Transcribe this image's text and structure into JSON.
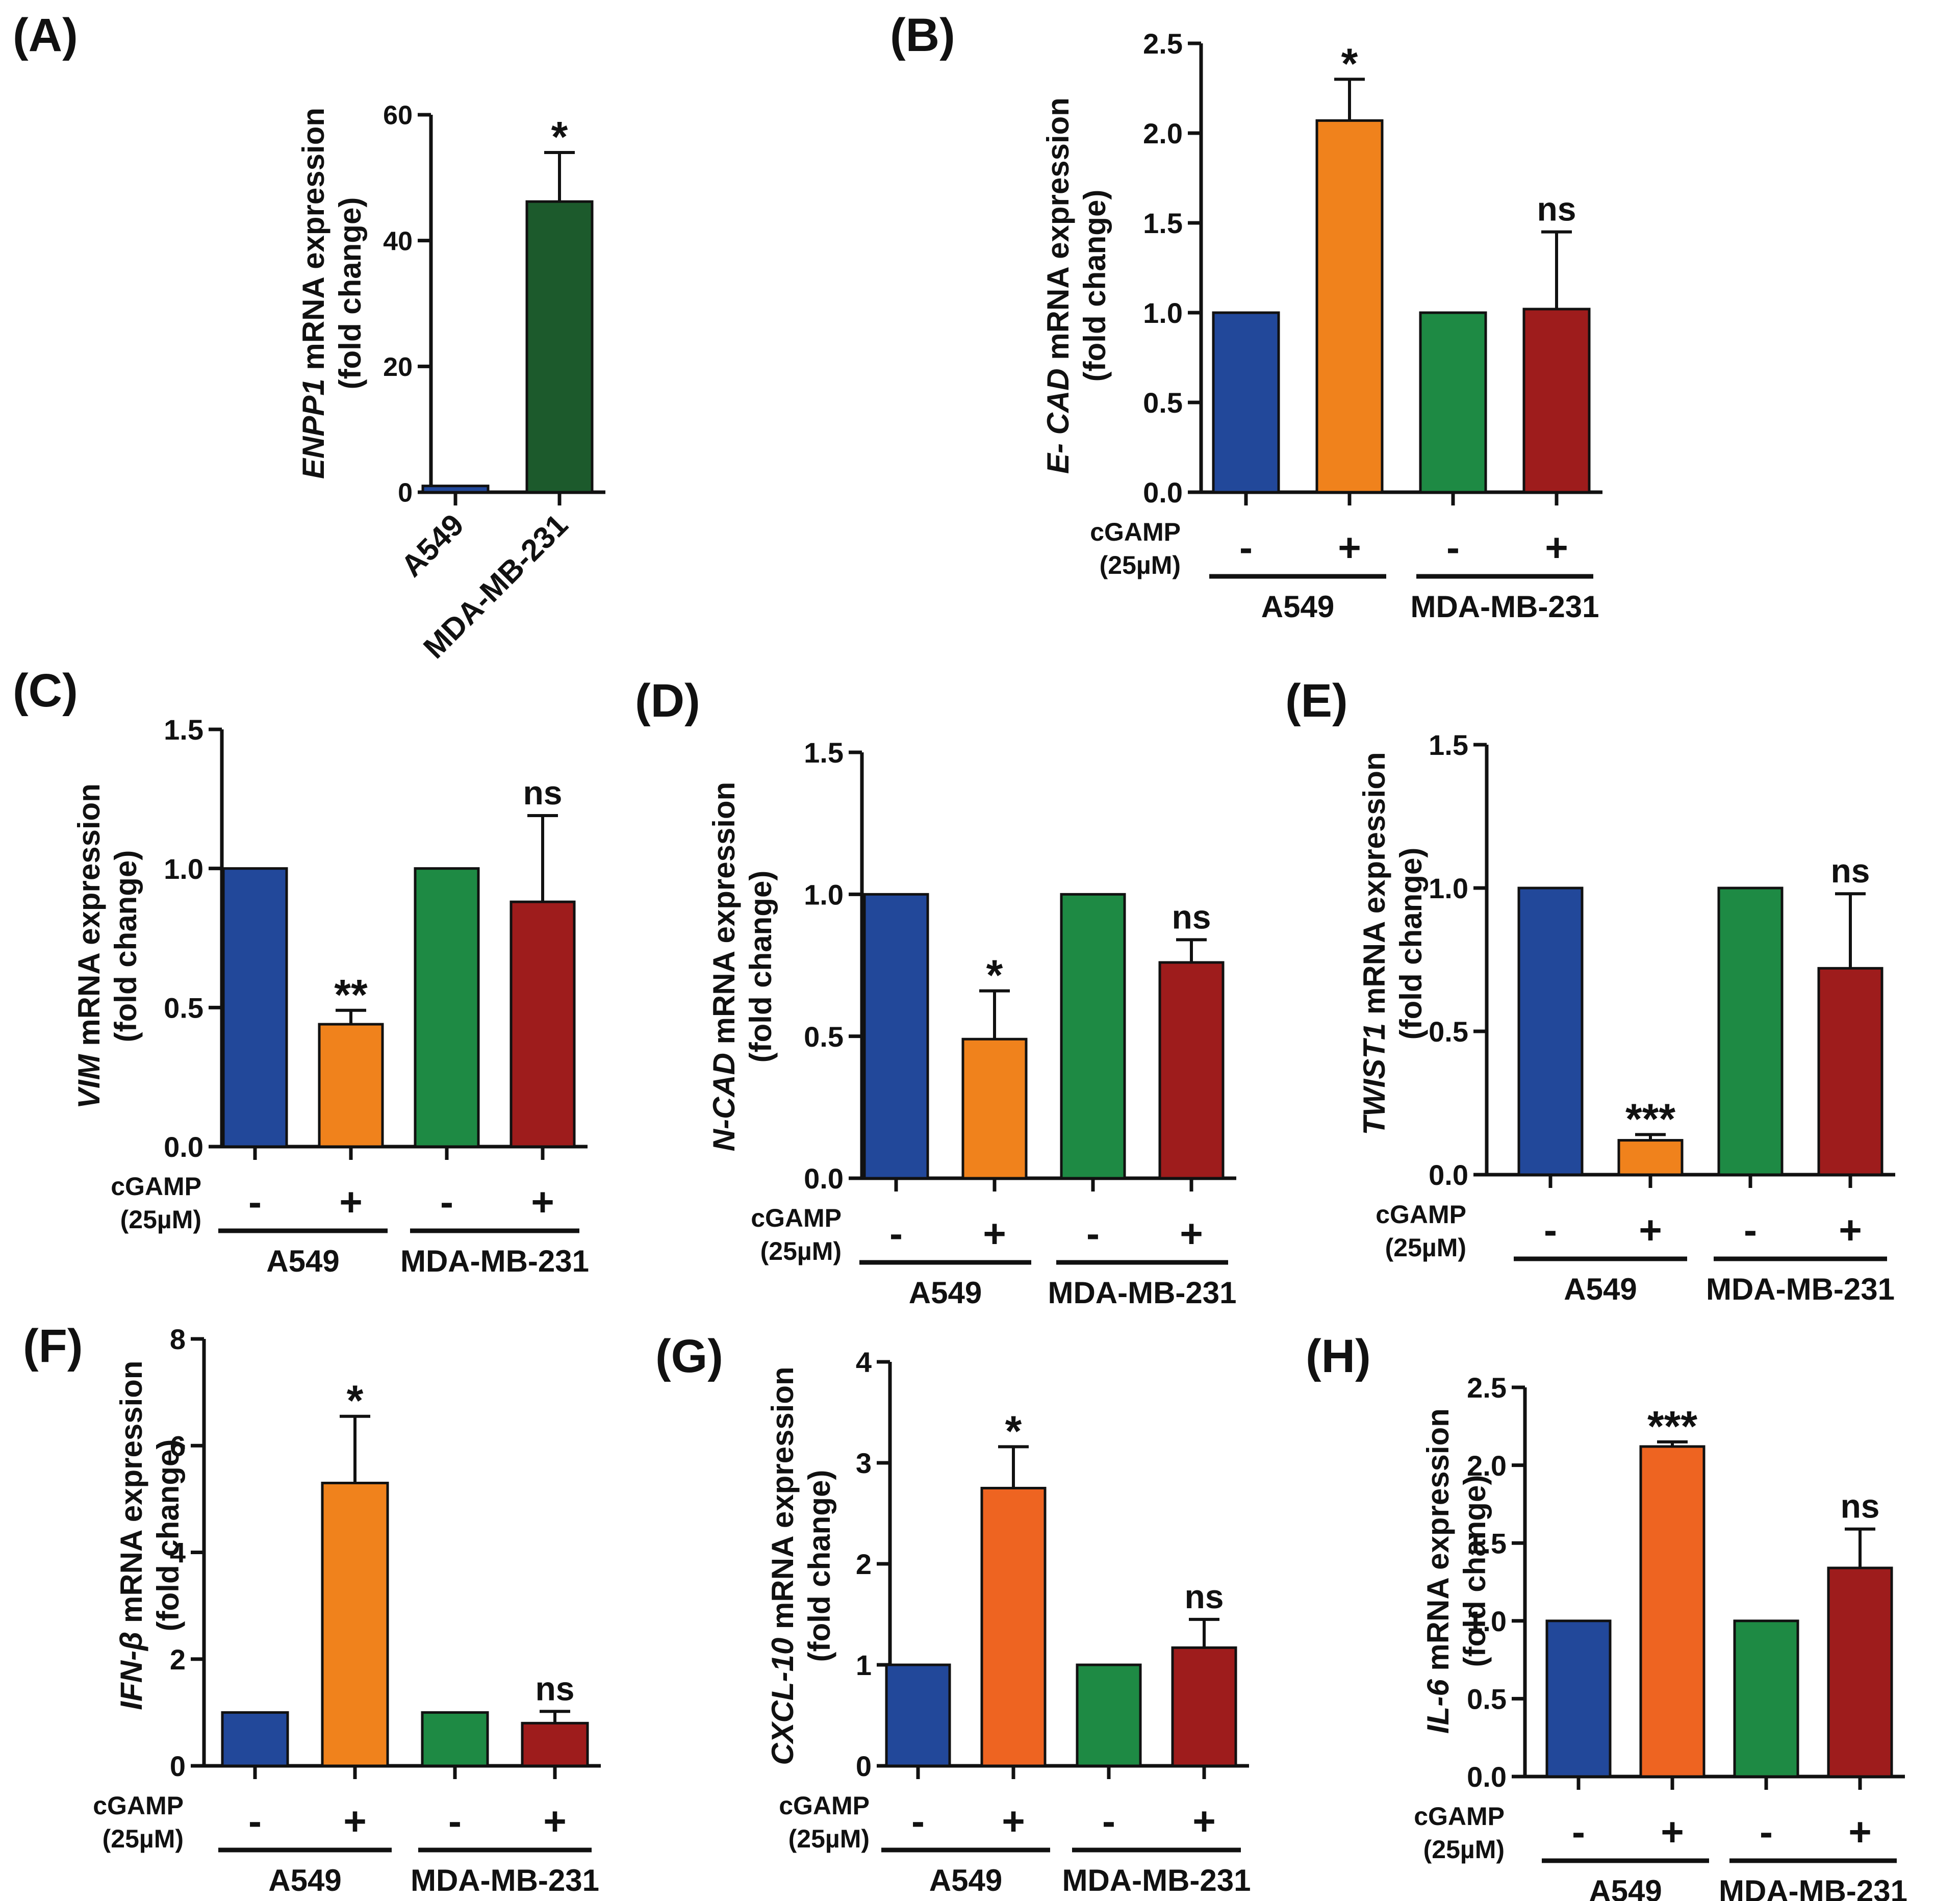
{
  "colors": {
    "blue": "#22489A",
    "orange": "#F0821C",
    "orange_red": "#EE6421",
    "green": "#1E8A44",
    "dark_green": "#1C5A2C",
    "dark_red": "#9E1C1C"
  },
  "chart_data": [
    {
      "id": "A",
      "panel_label": "(A)",
      "type": "bar",
      "ylabel_italic": "ENPP1",
      "ylabel_rest": " mRNA expression",
      "ylabel_line2": "(fold change)",
      "ylim": [
        0,
        60
      ],
      "yticks": [
        "0",
        "20",
        "40",
        "60"
      ],
      "categories": [
        "A549",
        "MDA-MB-231"
      ],
      "values": [
        1,
        46.2
      ],
      "errors": [
        0,
        7.8
      ],
      "bar_colors": [
        "blue",
        "dark_green"
      ],
      "annotations": [
        "",
        "*"
      ]
    },
    {
      "id": "B",
      "panel_label": "(B)",
      "type": "bar",
      "ylabel_italic": "E- CAD",
      "ylabel_rest": " mRNA expression",
      "ylabel_line2": "(fold change)",
      "ylim": [
        0,
        2.5
      ],
      "yticks": [
        "0.0",
        "0.5",
        "1.0",
        "1.5",
        "2.0",
        "2.5"
      ],
      "treatment_label_line1": "cGAMP",
      "treatment_label_line2": "(25µM)",
      "signs": [
        "-",
        "+",
        "-",
        "+"
      ],
      "groups": [
        "A549",
        "MDA-MB-231"
      ],
      "values": [
        1.0,
        2.07,
        1.0,
        1.02
      ],
      "errors": [
        0,
        0.23,
        0,
        0.43
      ],
      "bar_colors": [
        "blue",
        "orange",
        "green",
        "dark_red"
      ],
      "annotations": [
        "",
        "*",
        "",
        "ns"
      ]
    },
    {
      "id": "C",
      "panel_label": "(C)",
      "type": "bar",
      "ylabel_italic": "VIM",
      "ylabel_rest": " mRNA expression",
      "ylabel_line2": "(fold change)",
      "ylim": [
        0,
        1.5
      ],
      "yticks": [
        "0.0",
        "0.5",
        "1.0",
        "1.5"
      ],
      "treatment_label_line1": "cGAMP",
      "treatment_label_line2": "(25µM)",
      "signs": [
        "-",
        "+",
        "-",
        "+"
      ],
      "groups": [
        "A549",
        "MDA-MB-231"
      ],
      "values": [
        1.0,
        0.44,
        1.0,
        0.88
      ],
      "errors": [
        0,
        0.05,
        0,
        0.31
      ],
      "bar_colors": [
        "blue",
        "orange",
        "green",
        "dark_red"
      ],
      "annotations": [
        "",
        "**",
        "",
        "ns"
      ]
    },
    {
      "id": "D",
      "panel_label": "(D)",
      "type": "bar",
      "ylabel_italic": "N-CAD",
      "ylabel_rest": " mRNA expression",
      "ylabel_line2": "(fold change)",
      "ylim": [
        0,
        1.5
      ],
      "yticks": [
        "0.0",
        "0.5",
        "1.0",
        "1.5"
      ],
      "treatment_label_line1": "cGAMP",
      "treatment_label_line2": "(25µM)",
      "signs": [
        "-",
        "+",
        "-",
        "+"
      ],
      "groups": [
        "A549",
        "MDA-MB-231"
      ],
      "values": [
        1.0,
        0.49,
        1.0,
        0.76
      ],
      "errors": [
        0,
        0.17,
        0,
        0.08
      ],
      "bar_colors": [
        "blue",
        "orange",
        "green",
        "dark_red"
      ],
      "annotations": [
        "",
        "*",
        "",
        "ns"
      ]
    },
    {
      "id": "E",
      "panel_label": "(E)",
      "type": "bar",
      "ylabel_italic": "TWIST1",
      "ylabel_rest": " mRNA expression",
      "ylabel_line2": "(fold change)",
      "ylim": [
        0,
        1.5
      ],
      "yticks": [
        "0.0",
        "0.5",
        "1.0",
        "1.5"
      ],
      "treatment_label_line1": "cGAMP",
      "treatment_label_line2": "(25µM)",
      "signs": [
        "-",
        "+",
        "-",
        "+"
      ],
      "groups": [
        "A549",
        "MDA-MB-231"
      ],
      "values": [
        1.0,
        0.12,
        1.0,
        0.72
      ],
      "errors": [
        0,
        0.02,
        0,
        0.26
      ],
      "bar_colors": [
        "blue",
        "orange",
        "green",
        "dark_red"
      ],
      "annotations": [
        "",
        "***",
        "",
        "ns"
      ]
    },
    {
      "id": "F",
      "panel_label": "(F)",
      "type": "bar",
      "ylabel_italic": "IFN-β",
      "ylabel_rest": " mRNA expression",
      "ylabel_line2": "(fold change)",
      "ylim": [
        0,
        8
      ],
      "yticks": [
        "0",
        "2",
        "4",
        "6",
        "8"
      ],
      "treatment_label_line1": "cGAMP",
      "treatment_label_line2": "(25µM)",
      "signs": [
        "-",
        "+",
        "-",
        "+"
      ],
      "groups": [
        "A549",
        "MDA-MB-231"
      ],
      "values": [
        1.0,
        5.3,
        1.0,
        0.8
      ],
      "errors": [
        0,
        1.25,
        0,
        0.22
      ],
      "bar_colors": [
        "blue",
        "orange",
        "green",
        "dark_red"
      ],
      "annotations": [
        "",
        "*",
        "",
        "ns"
      ]
    },
    {
      "id": "G",
      "panel_label": "(G)",
      "type": "bar",
      "ylabel_italic": "CXCL-10",
      "ylabel_rest": " mRNA expression",
      "ylabel_line2": "(fold change)",
      "ylim": [
        0,
        4
      ],
      "yticks": [
        "0",
        "1",
        "2",
        "3",
        "4"
      ],
      "treatment_label_line1": "cGAMP",
      "treatment_label_line2": "(25µM)",
      "signs": [
        "-",
        "+",
        "-",
        "+"
      ],
      "groups": [
        "A549",
        "MDA-MB-231"
      ],
      "values": [
        1.0,
        2.75,
        1.0,
        1.17
      ],
      "errors": [
        0,
        0.41,
        0,
        0.28
      ],
      "bar_colors": [
        "blue",
        "orange_red",
        "green",
        "dark_red"
      ],
      "annotations": [
        "",
        "*",
        "",
        "ns"
      ]
    },
    {
      "id": "H",
      "panel_label": "(H)",
      "type": "bar",
      "ylabel_italic": "IL-6",
      "ylabel_rest": " mRNA expression",
      "ylabel_line2": "(fold change)",
      "ylim": [
        0,
        2.5
      ],
      "yticks": [
        "0.0",
        "0.5",
        "1.0",
        "1.5",
        "2.0",
        "2.5"
      ],
      "treatment_label_line1": "cGAMP",
      "treatment_label_line2": "(25µM)",
      "signs": [
        "-",
        "+",
        "-",
        "+"
      ],
      "groups": [
        "A549",
        "MDA-MB-231"
      ],
      "values": [
        1.0,
        2.12,
        1.0,
        1.34
      ],
      "errors": [
        0,
        0.03,
        0,
        0.25
      ],
      "bar_colors": [
        "blue",
        "orange_red",
        "green",
        "dark_red"
      ],
      "annotations": [
        "",
        "***",
        "",
        "ns"
      ]
    }
  ]
}
